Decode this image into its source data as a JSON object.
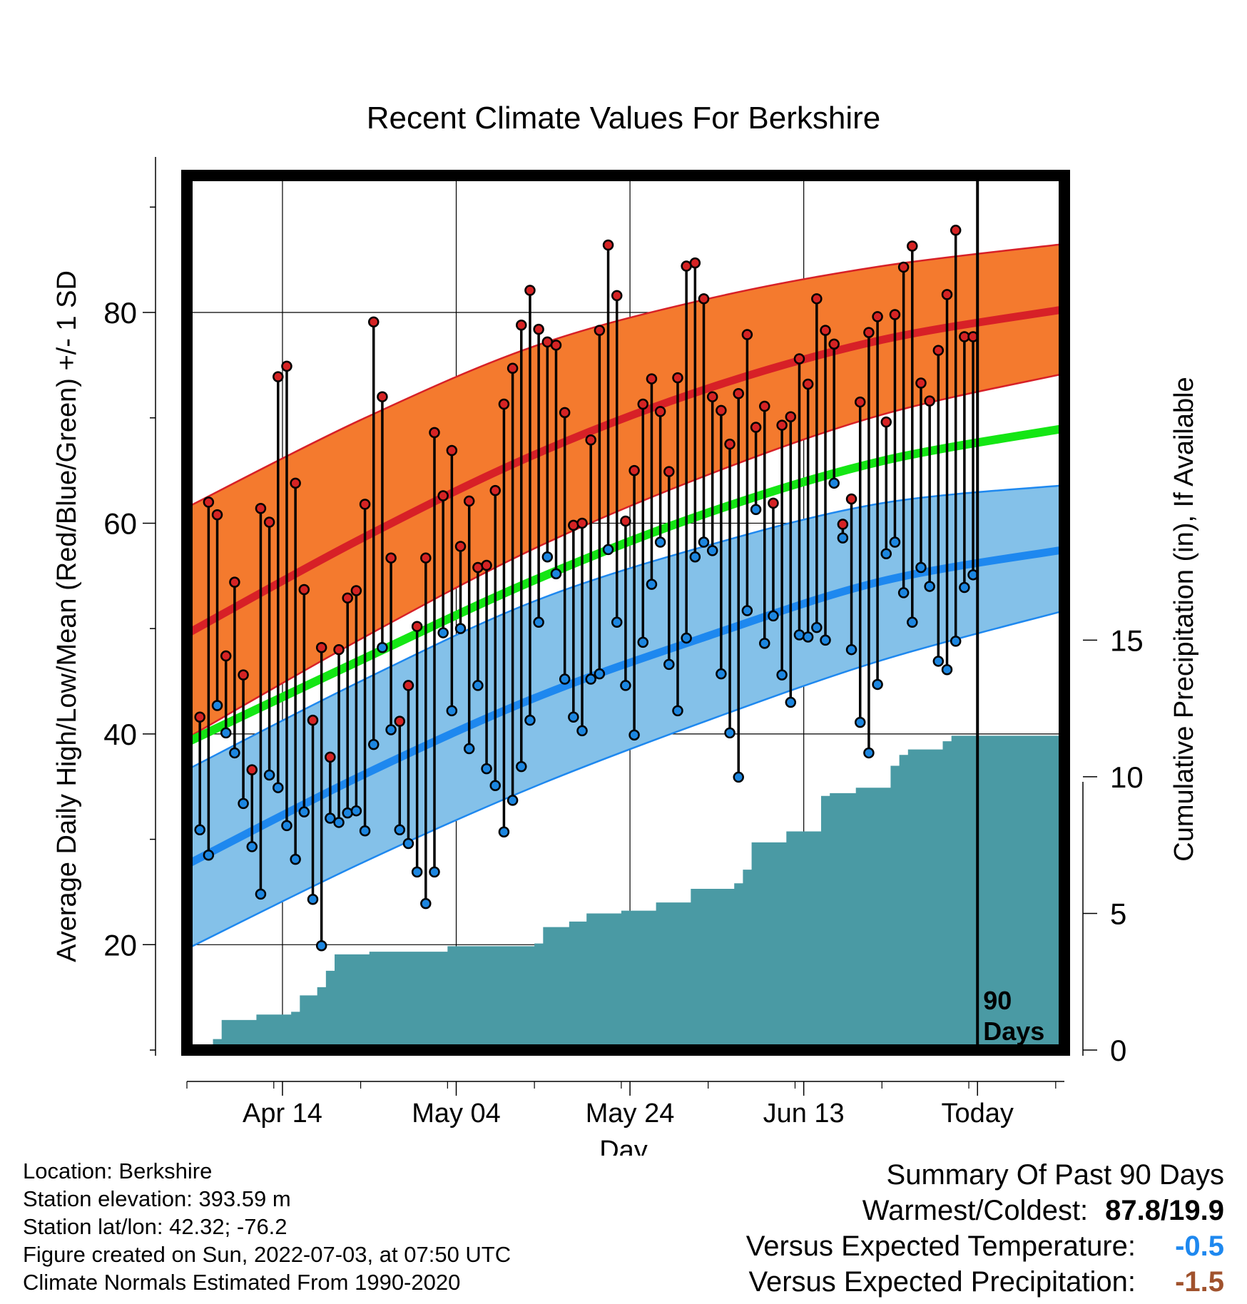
{
  "chart_data": {
    "type": "line",
    "title": "Recent Climate Values For Berkshire",
    "xlabel": "Day",
    "ylabel": "Average Daily High/Low/Mean (Red/Blue/Green) +/- 1 SD",
    "y2label": "Cumulative Precipitation (in), If Available",
    "xlim": [
      "2022-04-03",
      "2022-07-13"
    ],
    "ylim": [
      10,
      93
    ],
    "y2lim": [
      0,
      32
    ],
    "x_ticks": [
      {
        "date": "2022-04-14",
        "label": "Apr 14"
      },
      {
        "date": "2022-05-04",
        "label": "May 04"
      },
      {
        "date": "2022-05-24",
        "label": "May 24"
      },
      {
        "date": "2022-06-13",
        "label": "Jun 13"
      },
      {
        "date": "2022-07-03",
        "label": "Today"
      }
    ],
    "y_ticks": [
      "20",
      "40",
      "60",
      "80"
    ],
    "y2_ticks": [
      "0",
      "5",
      "10",
      "15"
    ],
    "today_marker": {
      "date": "2022-07-03",
      "label_line1": "90",
      "label_line2": "Days"
    },
    "grid": true,
    "colors": {
      "high_band": "#f47a2e",
      "high_mean": "#d72027",
      "high_band_edge": "#d72027",
      "low_band": "#84c1e9",
      "low_mean": "#1e88ef",
      "low_band_edge": "#1e88ef",
      "mean": "#14e614",
      "precip": "#4a9aa4",
      "high_dot": "#d52324",
      "low_dot": "#1c86e0",
      "stem": "#000000",
      "frame": "#000000"
    },
    "normals": {
      "x": [
        "2022-04-03",
        "2022-04-23",
        "2022-05-13",
        "2022-06-02",
        "2022-06-22",
        "2022-07-13"
      ],
      "high_mean": [
        49.5,
        58.5,
        66.5,
        72.8,
        77.4,
        80.3
      ],
      "high_upper": [
        61.5,
        69.8,
        76.8,
        81.3,
        84.4,
        86.5
      ],
      "high_lower": [
        39.6,
        49.0,
        57.6,
        64.6,
        70.3,
        74.2
      ],
      "mean": [
        39.2,
        47.0,
        54.6,
        61.0,
        65.9,
        69.0
      ],
      "low_mean": [
        27.6,
        36.0,
        43.4,
        49.3,
        54.5,
        57.5
      ],
      "low_upper": [
        36.6,
        45.0,
        52.6,
        57.9,
        61.9,
        63.6
      ],
      "low_lower": [
        19.6,
        27.7,
        35.0,
        41.3,
        47.0,
        51.7
      ]
    },
    "series": [
      {
        "name": "Daily High",
        "x": [
          "2022-04-04",
          "2022-04-05",
          "2022-04-06",
          "2022-04-07",
          "2022-04-08",
          "2022-04-09",
          "2022-04-10",
          "2022-04-11",
          "2022-04-12",
          "2022-04-13",
          "2022-04-14",
          "2022-04-15",
          "2022-04-16",
          "2022-04-17",
          "2022-04-18",
          "2022-04-19",
          "2022-04-20",
          "2022-04-21",
          "2022-04-22",
          "2022-04-23",
          "2022-04-24",
          "2022-04-25",
          "2022-04-26",
          "2022-04-27",
          "2022-04-28",
          "2022-04-29",
          "2022-04-30",
          "2022-05-01",
          "2022-05-02",
          "2022-05-03",
          "2022-05-04",
          "2022-05-05",
          "2022-05-06",
          "2022-05-07",
          "2022-05-08",
          "2022-05-09",
          "2022-05-10",
          "2022-05-11",
          "2022-05-12",
          "2022-05-13",
          "2022-05-14",
          "2022-05-15",
          "2022-05-16",
          "2022-05-17",
          "2022-05-18",
          "2022-05-19",
          "2022-05-20",
          "2022-05-21",
          "2022-05-22",
          "2022-05-23",
          "2022-05-24",
          "2022-05-25",
          "2022-05-26",
          "2022-05-27",
          "2022-05-28",
          "2022-05-29",
          "2022-05-30",
          "2022-05-31",
          "2022-06-01",
          "2022-06-02",
          "2022-06-03",
          "2022-06-04",
          "2022-06-05",
          "2022-06-06",
          "2022-06-07",
          "2022-06-08",
          "2022-06-09",
          "2022-06-10",
          "2022-06-11",
          "2022-06-12",
          "2022-06-13",
          "2022-06-14",
          "2022-06-15",
          "2022-06-16",
          "2022-06-17",
          "2022-06-18",
          "2022-06-19",
          "2022-06-20",
          "2022-06-21",
          "2022-06-22",
          "2022-06-23",
          "2022-06-24",
          "2022-06-25",
          "2022-06-26",
          "2022-06-27",
          "2022-06-28",
          "2022-06-29",
          "2022-06-30",
          "2022-07-01",
          "2022-07-02"
        ],
        "values": [
          41.6,
          62.0,
          60.8,
          47.4,
          54.4,
          45.6,
          36.6,
          61.4,
          60.1,
          73.9,
          74.9,
          63.8,
          53.7,
          41.3,
          48.2,
          37.8,
          48.0,
          52.9,
          53.6,
          61.8,
          79.1,
          72.0,
          56.7,
          41.2,
          44.6,
          50.2,
          56.7,
          68.6,
          62.6,
          66.9,
          57.8,
          62.1,
          55.8,
          56.0,
          63.1,
          71.3,
          74.7,
          78.8,
          82.1,
          78.4,
          77.2,
          76.9,
          70.5,
          59.8,
          60.0,
          67.9,
          78.3,
          86.4,
          81.6,
          60.2,
          65.0,
          71.3,
          73.7,
          70.6,
          64.9,
          73.8,
          84.4,
          84.7,
          81.3,
          72.0,
          70.7,
          67.5,
          72.3,
          77.9,
          69.1,
          71.1,
          61.9,
          69.3,
          70.1,
          75.6,
          73.2,
          81.3,
          78.3,
          77.0,
          59.9,
          62.3,
          71.5,
          78.1,
          79.6,
          69.6,
          79.8,
          84.3,
          86.3,
          73.3,
          71.6,
          76.4,
          81.7,
          87.8,
          77.7,
          77.7
        ]
      },
      {
        "name": "Daily Low",
        "x": [
          "2022-04-04",
          "2022-04-05",
          "2022-04-06",
          "2022-04-07",
          "2022-04-08",
          "2022-04-09",
          "2022-04-10",
          "2022-04-11",
          "2022-04-12",
          "2022-04-13",
          "2022-04-14",
          "2022-04-15",
          "2022-04-16",
          "2022-04-17",
          "2022-04-18",
          "2022-04-19",
          "2022-04-20",
          "2022-04-21",
          "2022-04-22",
          "2022-04-23",
          "2022-04-24",
          "2022-04-25",
          "2022-04-26",
          "2022-04-27",
          "2022-04-28",
          "2022-04-29",
          "2022-04-30",
          "2022-05-01",
          "2022-05-02",
          "2022-05-03",
          "2022-05-04",
          "2022-05-05",
          "2022-05-06",
          "2022-05-07",
          "2022-05-08",
          "2022-05-09",
          "2022-05-10",
          "2022-05-11",
          "2022-05-12",
          "2022-05-13",
          "2022-05-14",
          "2022-05-15",
          "2022-05-16",
          "2022-05-17",
          "2022-05-18",
          "2022-05-19",
          "2022-05-20",
          "2022-05-21",
          "2022-05-22",
          "2022-05-23",
          "2022-05-24",
          "2022-05-25",
          "2022-05-26",
          "2022-05-27",
          "2022-05-28",
          "2022-05-29",
          "2022-05-30",
          "2022-05-31",
          "2022-06-01",
          "2022-06-02",
          "2022-06-03",
          "2022-06-04",
          "2022-06-05",
          "2022-06-06",
          "2022-06-07",
          "2022-06-08",
          "2022-06-09",
          "2022-06-10",
          "2022-06-11",
          "2022-06-12",
          "2022-06-13",
          "2022-06-14",
          "2022-06-15",
          "2022-06-16",
          "2022-06-17",
          "2022-06-18",
          "2022-06-19",
          "2022-06-20",
          "2022-06-21",
          "2022-06-22",
          "2022-06-23",
          "2022-06-24",
          "2022-06-25",
          "2022-06-26",
          "2022-06-27",
          "2022-06-28",
          "2022-06-29",
          "2022-06-30",
          "2022-07-01",
          "2022-07-02"
        ],
        "values": [
          30.9,
          28.5,
          42.7,
          40.1,
          38.2,
          33.4,
          29.3,
          24.8,
          36.1,
          34.9,
          31.3,
          28.1,
          32.6,
          24.3,
          19.9,
          32.0,
          31.6,
          32.5,
          32.7,
          30.8,
          39.0,
          48.2,
          40.4,
          30.9,
          29.6,
          26.9,
          23.9,
          26.9,
          49.6,
          42.2,
          50.0,
          38.6,
          44.6,
          36.7,
          35.1,
          30.7,
          33.7,
          36.9,
          41.3,
          50.6,
          56.8,
          55.2,
          45.2,
          41.6,
          40.3,
          45.2,
          45.7,
          57.5,
          50.6,
          44.6,
          39.9,
          48.7,
          54.2,
          58.2,
          46.6,
          42.2,
          49.1,
          56.8,
          58.2,
          57.4,
          45.7,
          40.1,
          35.9,
          51.7,
          61.3,
          48.6,
          51.2,
          45.6,
          43.0,
          49.4,
          49.2,
          50.1,
          48.9,
          63.8,
          58.6,
          48.0,
          41.1,
          38.2,
          44.7,
          57.1,
          58.2,
          53.4,
          50.6,
          55.8,
          54.0,
          46.9,
          46.1,
          48.8,
          53.9,
          55.1
        ]
      },
      {
        "name": "Cumulative Precipitation",
        "x": [
          "2022-04-06",
          "2022-04-07",
          "2022-04-11",
          "2022-04-15",
          "2022-04-16",
          "2022-04-18",
          "2022-04-19",
          "2022-04-20",
          "2022-04-24",
          "2022-04-30",
          "2022-05-03",
          "2022-05-13",
          "2022-05-14",
          "2022-05-17",
          "2022-05-19",
          "2022-05-23",
          "2022-05-27",
          "2022-05-31",
          "2022-06-05",
          "2022-06-06",
          "2022-06-07",
          "2022-06-10",
          "2022-06-11",
          "2022-06-15",
          "2022-06-16",
          "2022-06-19",
          "2022-06-23",
          "2022-06-24",
          "2022-06-25",
          "2022-06-29",
          "2022-06-30",
          "2022-07-13"
        ],
        "values": [
          0.4,
          1.1,
          1.3,
          1.4,
          2.0,
          2.3,
          2.9,
          3.5,
          3.6,
          3.6,
          3.8,
          3.9,
          4.5,
          4.7,
          5.0,
          5.1,
          5.4,
          5.9,
          6.1,
          6.6,
          7.6,
          7.6,
          8.0,
          9.3,
          9.4,
          9.6,
          10.4,
          10.8,
          11.0,
          11.3,
          11.5,
          11.5
        ]
      }
    ]
  },
  "meta": {
    "location": "Location: Berkshire",
    "elevation": "Station elevation: 393.59 m",
    "latlon": "Station lat/lon: 42.32; -76.2",
    "created": "Figure created on Sun, 2022-07-03, at 07:50 UTC",
    "normals": "Climate Normals Estimated From 1990-2020"
  },
  "summary": {
    "heading": "Summary Of Past 90 Days",
    "warmest_coldest_label": "Warmest/Coldest:",
    "warmest_coldest_value": "87.8/19.9",
    "temp_label": "Versus Expected Temperature:",
    "temp_value": "-0.5",
    "temp_color": "#1e88ef",
    "precip_label": "Versus Expected Precipitation:",
    "precip_value": "-1.5",
    "precip_color": "#a0522d"
  }
}
